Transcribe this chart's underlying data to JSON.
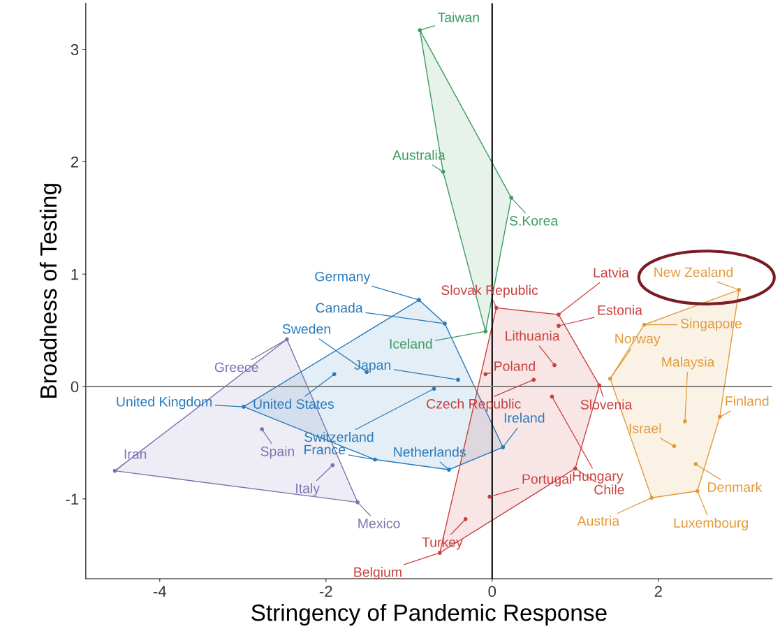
{
  "chart_data": {
    "type": "scatter",
    "xlabel": "Stringency of Pandemic Response",
    "ylabel": "Broadness of Testing",
    "xlim": [
      -4.89,
      3.37
    ],
    "ylim": [
      -1.71,
      3.41
    ],
    "xticks": [
      {
        "value": -4,
        "label": "-4"
      },
      {
        "value": -2,
        "label": "-2"
      },
      0,
      2
    ],
    "yticks": [
      {
        "value": -1,
        "label": "-1"
      },
      0,
      1,
      2,
      3
    ],
    "grid": false,
    "legend": false,
    "marker": "circle",
    "ref_lines": [
      {
        "axis": "x",
        "value": 0,
        "color": "#000000"
      },
      {
        "axis": "y",
        "value": 0,
        "color": "#808080"
      }
    ],
    "series": [
      {
        "color": "#3c9a5f",
        "x": [
          -0.87,
          -0.59,
          0.23,
          -0.08
        ],
        "values": [
          3.17,
          1.91,
          1.68,
          0.49
        ]
      },
      {
        "color": "#2a7ab9",
        "x": [
          -0.88,
          -0.57,
          -1.51,
          -0.41,
          -1.9,
          -2.99,
          -0.7,
          0.13,
          -0.52,
          -1.41
        ],
        "values": [
          0.77,
          0.56,
          0.13,
          0.06,
          0.11,
          -0.18,
          -0.02,
          -0.54,
          -0.74,
          -0.65
        ]
      },
      {
        "color": "#7a74b0",
        "x": [
          -2.47,
          -2.77,
          -4.54,
          -1.92,
          -1.62
        ],
        "values": [
          0.42,
          -0.38,
          -0.75,
          -0.7,
          -1.03
        ]
      },
      {
        "color": "#c9403f",
        "x": [
          0.05,
          0.8,
          0.8,
          0.75,
          -0.08,
          0.5,
          0.72,
          1.0,
          1.29,
          -0.03,
          -0.32,
          -0.63
        ],
        "values": [
          0.7,
          0.64,
          0.54,
          0.19,
          0.11,
          0.06,
          -0.09,
          -0.73,
          0.01,
          -0.98,
          -1.18,
          -1.48
        ]
      },
      {
        "color": "#e29a3a",
        "x": [
          2.97,
          1.83,
          1.42,
          2.32,
          2.19,
          2.74,
          2.45,
          2.47,
          1.92
        ],
        "values": [
          0.86,
          0.55,
          0.07,
          -0.31,
          -0.53,
          -0.27,
          -0.69,
          -0.93,
          -0.99
        ]
      }
    ],
    "annotations": [
      {
        "text": "Taiwan",
        "x": -0.87,
        "y": 3.17
      },
      {
        "text": "Australia",
        "x": -0.59,
        "y": 1.91
      },
      {
        "text": "S.Korea",
        "x": 0.23,
        "y": 1.68
      },
      {
        "text": "Iceland",
        "x": -0.08,
        "y": 0.49
      },
      {
        "text": "Germany",
        "x": -0.88,
        "y": 0.77
      },
      {
        "text": "Canada",
        "x": -0.57,
        "y": 0.56
      },
      {
        "text": "Sweden",
        "x": -1.51,
        "y": 0.13
      },
      {
        "text": "Japan",
        "x": -0.41,
        "y": 0.06
      },
      {
        "text": "United States",
        "x": -1.9,
        "y": 0.11
      },
      {
        "text": "United Kingdom",
        "x": -2.99,
        "y": -0.18
      },
      {
        "text": "Switzerland",
        "x": -0.7,
        "y": -0.02
      },
      {
        "text": "Ireland",
        "x": 0.13,
        "y": -0.54
      },
      {
        "text": "Netherlands",
        "x": -0.52,
        "y": -0.74
      },
      {
        "text": "France",
        "x": -1.41,
        "y": -0.65
      },
      {
        "text": "Greece",
        "x": -2.47,
        "y": 0.42
      },
      {
        "text": "Spain",
        "x": -2.77,
        "y": -0.38
      },
      {
        "text": "Iran",
        "x": -4.54,
        "y": -0.75
      },
      {
        "text": "Italy",
        "x": -1.92,
        "y": -0.7
      },
      {
        "text": "Mexico",
        "x": -1.62,
        "y": -1.03
      },
      {
        "text": "Slovak Republic",
        "x": 0.05,
        "y": 0.7
      },
      {
        "text": "Latvia",
        "x": 0.8,
        "y": 0.64
      },
      {
        "text": "Estonia",
        "x": 0.8,
        "y": 0.54
      },
      {
        "text": "Lithuania",
        "x": 0.75,
        "y": 0.19
      },
      {
        "text": "Poland",
        "x": -0.08,
        "y": 0.11
      },
      {
        "text": "Czech Republic",
        "x": 0.5,
        "y": 0.06
      },
      {
        "text": "Hungary",
        "x": 0.72,
        "y": -0.09
      },
      {
        "text": "Chile",
        "x": 1.0,
        "y": -0.73
      },
      {
        "text": "Slovenia",
        "x": 1.29,
        "y": 0.01
      },
      {
        "text": "Portugal",
        "x": -0.03,
        "y": -0.98
      },
      {
        "text": "Turkey",
        "x": -0.32,
        "y": -1.18
      },
      {
        "text": "Belgium",
        "x": -0.63,
        "y": -1.48
      },
      {
        "text": "New Zealand",
        "x": 2.97,
        "y": 0.86
      },
      {
        "text": "Singapore",
        "x": 1.83,
        "y": 0.55
      },
      {
        "text": "Norway",
        "x": 1.42,
        "y": 0.07
      },
      {
        "text": "Malaysia",
        "x": 2.32,
        "y": -0.31
      },
      {
        "text": "Israel",
        "x": 2.19,
        "y": -0.53
      },
      {
        "text": "Finland",
        "x": 2.74,
        "y": -0.27
      },
      {
        "text": "Denmark",
        "x": 2.45,
        "y": -0.69
      },
      {
        "text": "Luxembourg",
        "x": 2.47,
        "y": -0.93
      },
      {
        "text": "Austria",
        "x": 1.92,
        "y": -0.99
      }
    ]
  }
}
